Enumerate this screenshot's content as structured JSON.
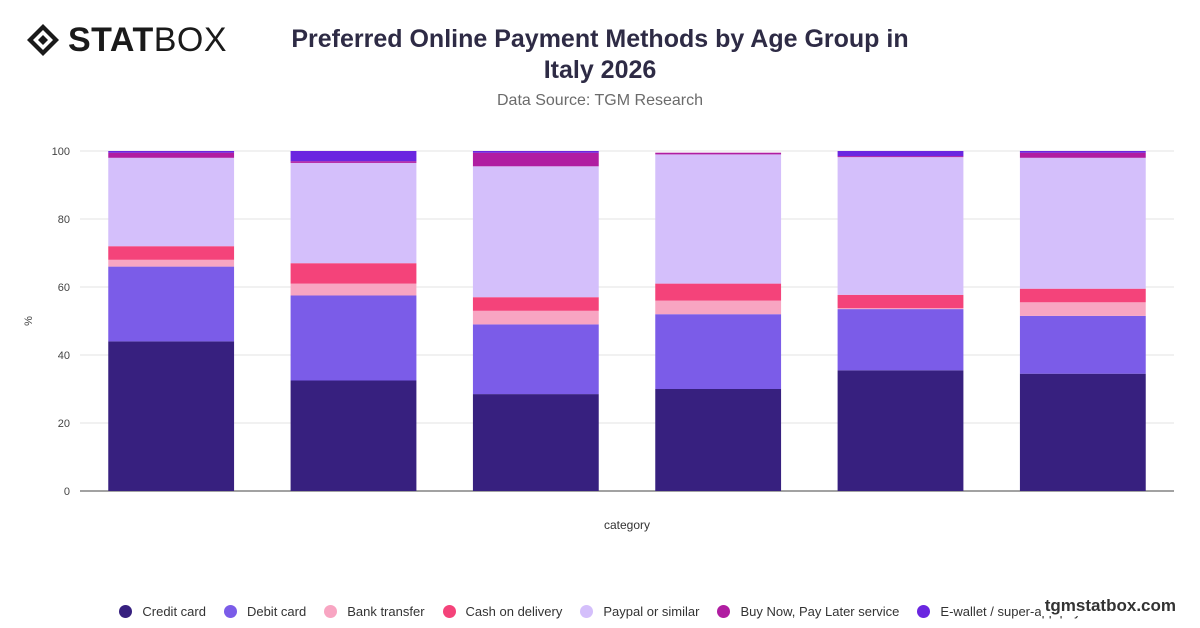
{
  "header": {
    "logo_bold": "STAT",
    "logo_light": "BOX",
    "title_line1": "Preferred Online Payment Methods by Age Group in",
    "title_line2": "Italy 2026",
    "subtitle": "Data Source: TGM Research"
  },
  "footer": {
    "brand": "tgmstatbox.com"
  },
  "chart_data": {
    "type": "bar",
    "stacked": true,
    "categories": [
      "",
      "",
      "",
      "",
      "",
      ""
    ],
    "xlabel": "category",
    "ylabel": "%",
    "ylim": [
      0,
      100
    ],
    "yticks": [
      0,
      20,
      40,
      60,
      80,
      100
    ],
    "grid": true,
    "legend_position": "bottom",
    "series": [
      {
        "name": "Credit card",
        "color": "#37207f",
        "values": [
          44,
          32.5,
          28.5,
          30,
          35.5,
          34.5
        ]
      },
      {
        "name": "Debit card",
        "color": "#7b5ce8",
        "values": [
          22,
          25,
          20.5,
          22,
          18,
          17
        ]
      },
      {
        "name": "Bank transfer",
        "color": "#f8a5c2",
        "values": [
          2,
          3.5,
          4,
          4,
          0.3,
          4
        ]
      },
      {
        "name": "Cash on delivery",
        "color": "#f4437a",
        "values": [
          4,
          6,
          4,
          5,
          3.9,
          4
        ]
      },
      {
        "name": "Paypal or similar",
        "color": "#d4bffb",
        "values": [
          26,
          29.5,
          38.5,
          38,
          40.5,
          38.5
        ]
      },
      {
        "name": "Buy Now, Pay Later service",
        "color": "#b01da1",
        "values": [
          1.5,
          0.5,
          4,
          0.5,
          0.3,
          1.5
        ]
      },
      {
        "name": "E-wallet / super-app pay",
        "color": "#6a26e0",
        "values": [
          0.5,
          3,
          0.5,
          0,
          1.5,
          0.5
        ]
      }
    ]
  }
}
